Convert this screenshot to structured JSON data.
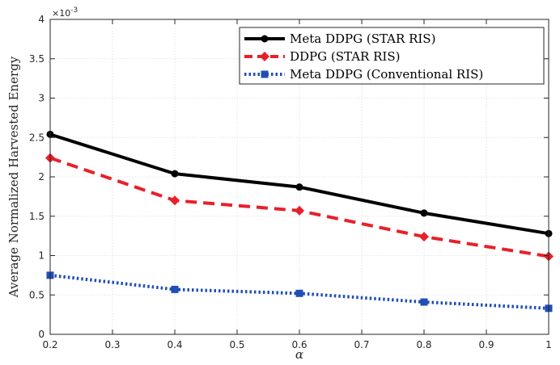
{
  "chart_data": {
    "type": "line",
    "xlabel": "α",
    "ylabel": "Average Normalized Harvested Energy",
    "y_multiplier_label": "×10",
    "y_multiplier_exponent": "-3",
    "xlim": [
      0.2,
      1.0
    ],
    "ylim": [
      0,
      4
    ],
    "xticks": [
      0.2,
      0.3,
      0.4,
      0.5,
      0.6,
      0.7,
      0.8,
      0.9,
      1.0
    ],
    "xtick_labels": [
      "0.2",
      "0.3",
      "0.4",
      "0.5",
      "0.6",
      "0.7",
      "0.8",
      "0.9",
      "1"
    ],
    "yticks": [
      0,
      0.5,
      1,
      1.5,
      2,
      2.5,
      3,
      3.5,
      4
    ],
    "ytick_labels": [
      "0",
      "0.5",
      "1",
      "1.5",
      "2",
      "2.5",
      "3",
      "3.5",
      "4"
    ],
    "grid": true,
    "legend_position": "top-right",
    "x": [
      0.2,
      0.4,
      0.6,
      0.8,
      1.0
    ],
    "series": [
      {
        "name": "Meta DDPG (STAR RIS)",
        "values": [
          2.54,
          2.04,
          1.87,
          1.54,
          1.28
        ],
        "color": "#000000",
        "line_style": "solid",
        "marker": "circle"
      },
      {
        "name": "DDPG (STAR RIS)",
        "values": [
          2.24,
          1.7,
          1.57,
          1.24,
          0.99
        ],
        "color": "#e8202a",
        "line_style": "dashed",
        "marker": "diamond"
      },
      {
        "name": "Meta DDPG (Conventional RIS)",
        "values": [
          0.75,
          0.57,
          0.52,
          0.41,
          0.33
        ],
        "color": "#1f4fb4",
        "line_style": "dotted",
        "marker": "square"
      }
    ]
  }
}
